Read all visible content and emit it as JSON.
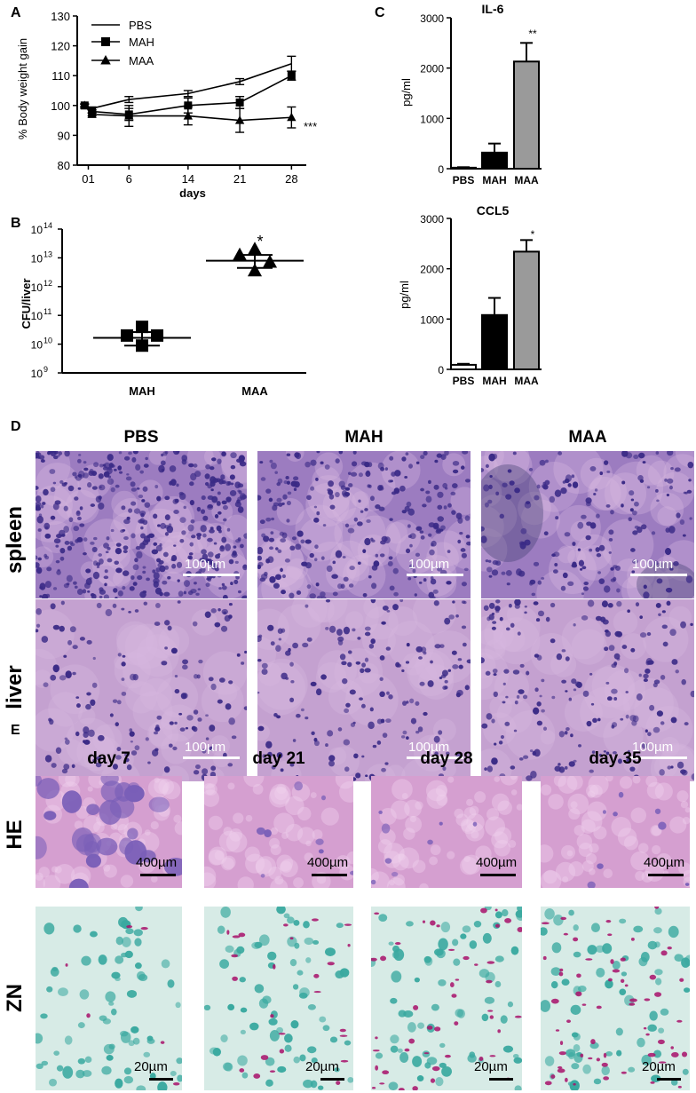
{
  "panels": {
    "A": "A",
    "B": "B",
    "C": "C",
    "D": "D",
    "E": "E"
  },
  "chart_data": [
    {
      "panel": "A",
      "type": "line",
      "ylabel": "% Body weight gain",
      "xlabel": "days",
      "xticks": [
        "01",
        "6",
        "14",
        "21",
        "28"
      ],
      "yticks": [
        80,
        90,
        100,
        110,
        120,
        130
      ],
      "ylim": [
        80,
        130
      ],
      "legend_position": "top-left",
      "series": [
        {
          "name": "PBS",
          "marker": "none",
          "x": [
            0,
            1,
            6,
            14,
            21,
            28
          ],
          "y": [
            100,
            99,
            102,
            104,
            108,
            114
          ],
          "err": [
            0.5,
            0.5,
            1,
            1,
            1,
            2.5
          ]
        },
        {
          "name": "MAH",
          "marker": "square",
          "x": [
            0,
            1,
            6,
            14,
            21,
            28
          ],
          "y": [
            100,
            98,
            97,
            100,
            101,
            110
          ],
          "err": [
            0.5,
            0.5,
            2,
            2.5,
            2,
            1.5
          ]
        },
        {
          "name": "MAA",
          "marker": "triangle",
          "x": [
            0,
            1,
            6,
            14,
            21,
            28
          ],
          "y": [
            100,
            97,
            96.5,
            96.5,
            95,
            96
          ],
          "err": [
            0.5,
            0.5,
            3.5,
            3,
            4,
            3.5
          ]
        }
      ],
      "annotation": "***"
    },
    {
      "panel": "B",
      "type": "scatter",
      "ylabel": "CFU/liver",
      "yscale": "log",
      "yticks": [
        "10",
        "10",
        "10",
        "10",
        "10",
        "10"
      ],
      "yexponents": [
        "9",
        "10",
        "11",
        "12",
        "13",
        "14"
      ],
      "ylim_log10": [
        9,
        14
      ],
      "categories": [
        "MAH",
        "MAA"
      ],
      "groups": [
        {
          "name": "MAH",
          "marker": "square",
          "log10_values": [
            10.6,
            10.3,
            10.3,
            9.95
          ],
          "mean_log10": 10.22,
          "sem_low_log10": 9.95,
          "sem_high_log10": 10.42
        },
        {
          "name": "MAA",
          "marker": "triangle",
          "log10_values": [
            13.3,
            13.1,
            12.85,
            12.55
          ],
          "mean_log10": 12.9,
          "sem_low_log10": 12.65,
          "sem_high_log10": 13.1
        }
      ],
      "annotation": "*"
    },
    {
      "panel": "C",
      "type": "bar",
      "title": "IL-6",
      "ylabel": "pg/ml",
      "categories": [
        "PBS",
        "MAH",
        "MAA"
      ],
      "values": [
        20,
        320,
        2130
      ],
      "errors": [
        10,
        180,
        370
      ],
      "colors": [
        "#000000",
        "#000000",
        "#9a9a9a"
      ],
      "yticks": [
        0,
        1000,
        2000,
        3000
      ],
      "ylim": [
        0,
        3000
      ],
      "annotation": "**"
    },
    {
      "panel": "C",
      "type": "bar",
      "title": "CCL5",
      "ylabel": "pg/ml",
      "categories": [
        "PBS",
        "MAH",
        "MAA"
      ],
      "values": [
        90,
        1080,
        2340
      ],
      "errors": [
        20,
        340,
        230
      ],
      "colors": [
        "#ffffff",
        "#000000",
        "#9a9a9a"
      ],
      "yticks": [
        0,
        1000,
        2000,
        3000
      ],
      "ylim": [
        0,
        3000
      ],
      "annotation": "*"
    }
  ],
  "panel_d": {
    "columns": [
      "PBS",
      "MAH",
      "MAA"
    ],
    "rows": [
      "spleen",
      "liver"
    ],
    "scale": "100µm",
    "palette": {
      "stain_bg": "#b78ac2",
      "nuclei": "#3a2a86",
      "spleen_bg": "#9c7cc0",
      "liver_bg": "#c4a1d0"
    }
  },
  "panel_e": {
    "columns": [
      "day 7",
      "day 21",
      "day 28",
      "day 35"
    ],
    "rows": [
      "HE",
      "ZN"
    ],
    "scale_he": "400µm",
    "scale_zn": "20µm",
    "palette": {
      "he_bg": "#d59fd0",
      "zn_bg": "#d7ebe6",
      "zn_cells": "#3aa9a0",
      "zn_bacilli": "#a8106a"
    }
  }
}
